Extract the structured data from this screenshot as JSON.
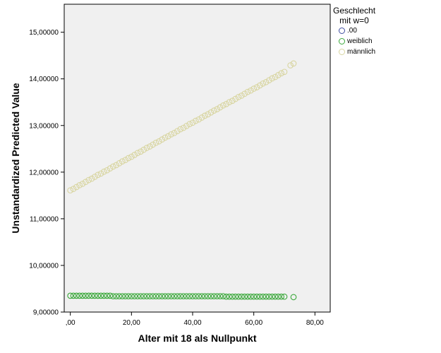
{
  "chart_data": {
    "type": "scatter",
    "xlabel": "Alter mit 18 als Nullpunkt",
    "ylabel": "Unstandardized Predicted Value",
    "xlim": [
      -2,
      85
    ],
    "ylim": [
      9.0,
      15.6
    ],
    "xticks": [
      0,
      20,
      40,
      60,
      80
    ],
    "xtick_labels": [
      ",00",
      "20,00",
      "40,00",
      "60,00",
      "80,00"
    ],
    "yticks": [
      9,
      10,
      11,
      12,
      13,
      14,
      15
    ],
    "ytick_labels": [
      "9,00000",
      "10,00000",
      "11,00000",
      "12,00000",
      "13,00000",
      "14,00000",
      "15,00000"
    ],
    "grid": false,
    "legend": {
      "placement": "top-right-outside",
      "title_lines": [
        "Geschlecht",
        "mit w=0"
      ]
    },
    "series": [
      {
        "name": ".00",
        "color": "#3f4fa0",
        "x": [],
        "y": []
      },
      {
        "name": "weiblich",
        "color": "#3aa83a",
        "x": [
          0,
          1,
          2,
          3,
          4,
          5,
          6,
          7,
          8,
          9,
          10,
          11,
          12,
          13,
          14,
          15,
          16,
          17,
          18,
          19,
          20,
          21,
          22,
          23,
          24,
          25,
          26,
          27,
          28,
          29,
          30,
          31,
          32,
          33,
          34,
          35,
          36,
          37,
          38,
          39,
          40,
          41,
          42,
          43,
          44,
          45,
          46,
          47,
          48,
          49,
          50,
          51,
          52,
          53,
          54,
          55,
          56,
          57,
          58,
          59,
          60,
          61,
          62,
          63,
          64,
          65,
          66,
          67,
          68,
          69,
          70,
          73
        ],
        "y": [
          9.35,
          9.35,
          9.35,
          9.35,
          9.35,
          9.35,
          9.35,
          9.35,
          9.35,
          9.35,
          9.35,
          9.35,
          9.35,
          9.35,
          9.34,
          9.34,
          9.34,
          9.34,
          9.34,
          9.34,
          9.34,
          9.34,
          9.34,
          9.34,
          9.34,
          9.34,
          9.34,
          9.34,
          9.34,
          9.34,
          9.34,
          9.34,
          9.34,
          9.34,
          9.34,
          9.34,
          9.34,
          9.34,
          9.34,
          9.34,
          9.34,
          9.34,
          9.34,
          9.34,
          9.34,
          9.34,
          9.34,
          9.34,
          9.34,
          9.34,
          9.34,
          9.33,
          9.33,
          9.33,
          9.33,
          9.33,
          9.33,
          9.33,
          9.33,
          9.33,
          9.33,
          9.33,
          9.33,
          9.33,
          9.33,
          9.33,
          9.33,
          9.33,
          9.33,
          9.33,
          9.33,
          9.32
        ]
      },
      {
        "name": "männlich",
        "color": "#d8d5a0",
        "x": [
          0,
          1,
          2,
          3,
          4,
          5,
          6,
          7,
          8,
          9,
          10,
          11,
          12,
          13,
          14,
          15,
          16,
          17,
          18,
          19,
          20,
          21,
          22,
          23,
          24,
          25,
          26,
          27,
          28,
          29,
          30,
          31,
          32,
          33,
          34,
          35,
          36,
          37,
          38,
          39,
          40,
          41,
          42,
          43,
          44,
          45,
          46,
          47,
          48,
          49,
          50,
          51,
          52,
          53,
          54,
          55,
          56,
          57,
          58,
          59,
          60,
          61,
          62,
          63,
          64,
          65,
          66,
          67,
          68,
          69,
          70,
          72,
          73
        ],
        "y": [
          11.61,
          11.64,
          11.68,
          11.72,
          11.75,
          11.79,
          11.83,
          11.86,
          11.9,
          11.94,
          11.97,
          12.01,
          12.04,
          12.08,
          12.12,
          12.15,
          12.19,
          12.23,
          12.26,
          12.3,
          12.33,
          12.37,
          12.41,
          12.44,
          12.48,
          12.52,
          12.55,
          12.59,
          12.63,
          12.66,
          12.7,
          12.74,
          12.77,
          12.81,
          12.84,
          12.88,
          12.92,
          12.95,
          12.99,
          13.03,
          13.06,
          13.1,
          13.13,
          13.17,
          13.21,
          13.24,
          13.28,
          13.32,
          13.35,
          13.39,
          13.43,
          13.46,
          13.5,
          13.53,
          13.57,
          13.61,
          13.64,
          13.68,
          13.72,
          13.75,
          13.79,
          13.82,
          13.86,
          13.9,
          13.93,
          13.97,
          14.01,
          14.04,
          14.08,
          14.12,
          14.15,
          14.29,
          14.33
        ]
      }
    ]
  }
}
